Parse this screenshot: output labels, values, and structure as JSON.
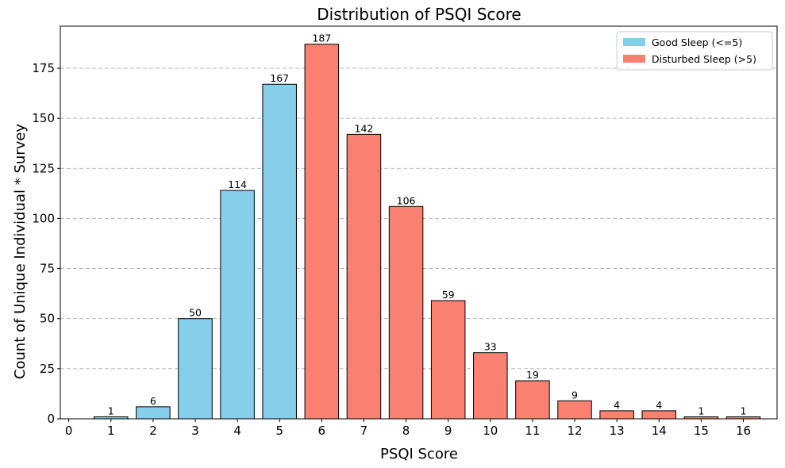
{
  "chart_data": {
    "type": "bar",
    "title": "Distribution of PSQI Score",
    "xlabel": "PSQI Score",
    "ylabel": "Count of Unique Individual * Survey",
    "x": [
      1,
      2,
      3,
      4,
      5,
      6,
      7,
      8,
      9,
      10,
      11,
      12,
      13,
      14,
      15,
      16
    ],
    "values": [
      1,
      6,
      50,
      114,
      167,
      187,
      142,
      106,
      59,
      33,
      19,
      9,
      4,
      4,
      1,
      1
    ],
    "groups": [
      "good",
      "good",
      "good",
      "good",
      "good",
      "disturbed",
      "disturbed",
      "disturbed",
      "disturbed",
      "disturbed",
      "disturbed",
      "disturbed",
      "disturbed",
      "disturbed",
      "disturbed",
      "disturbed"
    ],
    "xticks": [
      "0",
      "1",
      "2",
      "3",
      "4",
      "5",
      "6",
      "7",
      "8",
      "9",
      "10",
      "11",
      "12",
      "13",
      "14",
      "15",
      "16"
    ],
    "yticks": [
      "0",
      "25",
      "50",
      "75",
      "100",
      "125",
      "150",
      "175"
    ],
    "xlim": [
      -0.2,
      16.8
    ],
    "ylim": [
      0,
      196
    ],
    "grid": "y-dashed",
    "legend_placement": "top-right",
    "legend": [
      {
        "group": "good",
        "label": "Good Sleep (<=5)",
        "color": "#87ceeb"
      },
      {
        "group": "disturbed",
        "label": "Disturbed Sleep (>5)",
        "color": "#fa8072"
      }
    ],
    "colors": {
      "good": "#87ceeb",
      "disturbed": "#fa8072",
      "edge": "#000000"
    }
  }
}
